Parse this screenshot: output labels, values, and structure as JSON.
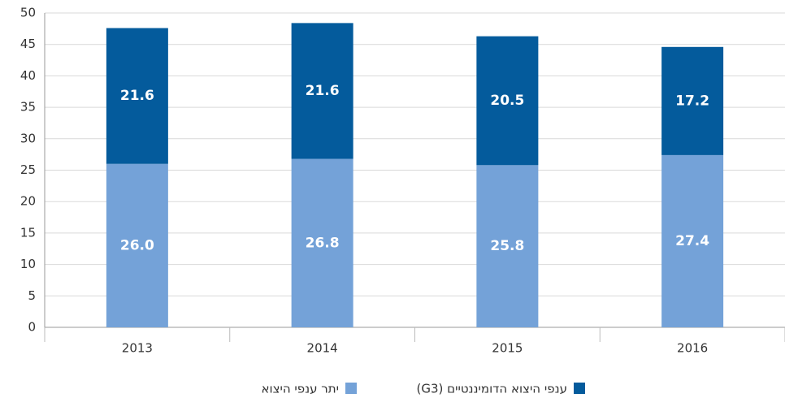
{
  "chart_data": {
    "type": "stacked_bar",
    "categories": [
      "2013",
      "2014",
      "2015",
      "2016"
    ],
    "series": [
      {
        "name": "יתר ענפי היצוא",
        "color": "#74a2d8",
        "values": [
          26.0,
          26.8,
          25.8,
          27.4
        ],
        "value_labels": [
          "26.0",
          "26.8",
          "25.8",
          "27.4"
        ]
      },
      {
        "name": "ענפי היצוא הדומיננטיים (G3)",
        "color": "#045b9c",
        "values": [
          21.6,
          21.6,
          20.5,
          17.2
        ],
        "value_labels": [
          "21.6",
          "21.6",
          "20.5",
          "17.2"
        ]
      }
    ],
    "ylim": [
      0,
      50
    ],
    "yticks": [
      0,
      5,
      10,
      15,
      20,
      25,
      30,
      35,
      40,
      45,
      50
    ],
    "grid": true
  }
}
